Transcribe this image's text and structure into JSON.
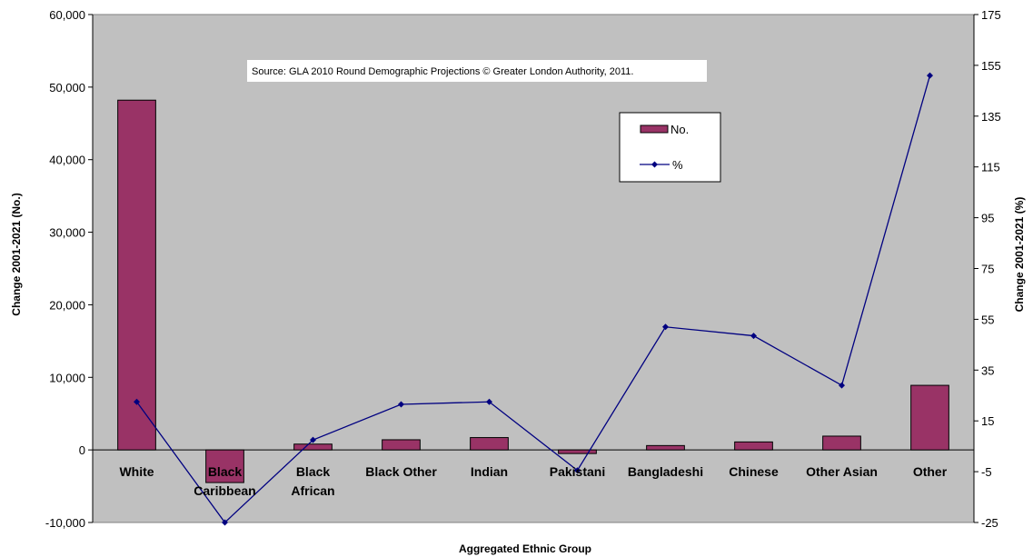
{
  "chart_data": {
    "type": "bar",
    "categories": [
      "White",
      "Black Caribbean",
      "Black African",
      "Black Other",
      "Indian",
      "Pakistani",
      "Bangladeshi",
      "Chinese",
      "Other Asian",
      "Other"
    ],
    "category_lines": [
      [
        "White"
      ],
      [
        "Black",
        "Caribbean"
      ],
      [
        "Black",
        "African"
      ],
      [
        "Black Other"
      ],
      [
        "Indian"
      ],
      [
        "Pakistani"
      ],
      [
        "Bangladeshi"
      ],
      [
        "Chinese"
      ],
      [
        "Other Asian"
      ],
      [
        "Other"
      ]
    ],
    "series": [
      {
        "name": "No.",
        "type": "bar",
        "axis": "left",
        "color": "#993366",
        "values": [
          48200,
          -4500,
          800,
          1400,
          1700,
          -500,
          600,
          1100,
          1900,
          8900
        ]
      },
      {
        "name": "%",
        "type": "line",
        "axis": "right",
        "color": "#000080",
        "values": [
          22.5,
          -25,
          7.5,
          21.5,
          22.5,
          -4.5,
          52,
          48.5,
          29,
          151
        ]
      }
    ],
    "xlabel": "Aggregated Ethnic Group",
    "ylabel": "Change 2001-2021 (No.)",
    "y2label": "Change 2001-2021 (%)",
    "ylim": [
      -10000,
      60000
    ],
    "y2lim": [
      -25,
      175
    ],
    "yticks": [
      -10000,
      0,
      10000,
      20000,
      30000,
      40000,
      50000,
      60000
    ],
    "yticklabels": [
      "-10,000",
      "0",
      "10,000",
      "20,000",
      "30,000",
      "40,000",
      "50,000",
      "60,000"
    ],
    "y2ticks": [
      -25,
      -5,
      15,
      35,
      55,
      75,
      95,
      115,
      135,
      155,
      175
    ],
    "y2ticklabels": [
      "-25",
      "-5",
      "15",
      "35",
      "55",
      "75",
      "95",
      "115",
      "135",
      "155",
      "175"
    ],
    "annotation": "Source: GLA 2010 Round Demographic Projections © Greater London Authority, 2011.",
    "legend": {
      "placement": "top-right",
      "entries": [
        "No.",
        "%"
      ]
    },
    "grid": false,
    "plot_background": "#c0c0c0"
  }
}
